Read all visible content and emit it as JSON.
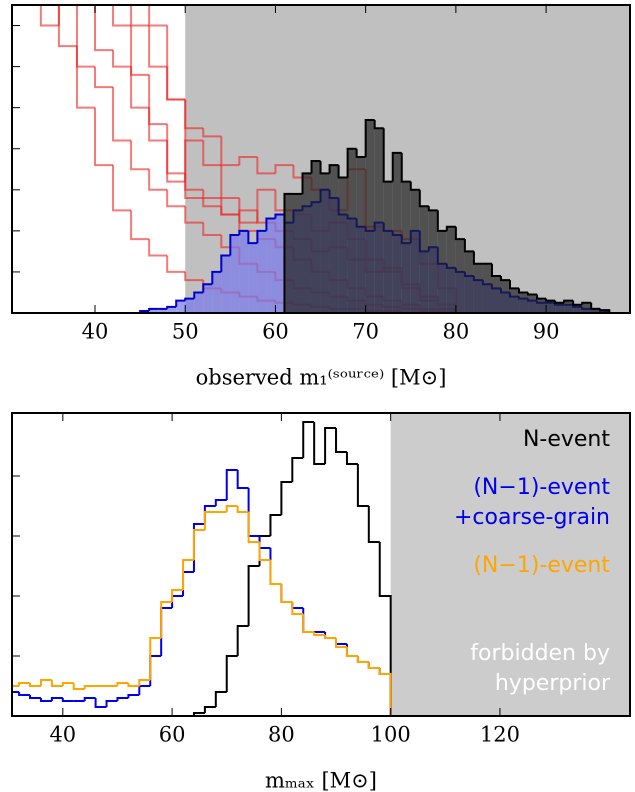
{
  "chart_data": [
    {
      "type": "histogram",
      "xlabel": "observed m₁⁽ˢᵒᵘʳᶜᵉ⁾ [M⊙]",
      "xlim": [
        30.8,
        99.3
      ],
      "xticks": [
        40,
        50,
        60,
        70,
        80,
        90
      ],
      "ylim": [
        0,
        7.5
      ],
      "yticks": [
        1,
        2,
        3,
        4,
        5,
        6,
        7
      ],
      "shade_from": 50,
      "shade_color": "#c0c0c0",
      "series": [
        {
          "color": "#ee2222",
          "bins": [
            30,
            32,
            34,
            36,
            38,
            40,
            42,
            44,
            46,
            48,
            50,
            52,
            54,
            56,
            58,
            60,
            62,
            64,
            66,
            68,
            70,
            72,
            74,
            76,
            78,
            80
          ],
          "values": [
            8,
            8,
            8,
            6.5,
            5,
            3.6,
            2.5,
            1.8,
            1.4,
            1.0,
            0.8,
            0.6,
            0.5,
            0.4,
            0.3,
            0.25,
            0.2,
            0.15,
            0.1,
            0.1,
            0.05,
            0.05,
            0,
            0,
            0
          ]
        },
        {
          "color": "#ee2222",
          "bins": [
            30,
            32,
            34,
            36,
            38,
            40,
            42,
            44,
            46,
            48,
            50,
            52,
            54,
            56,
            58,
            60,
            62,
            64,
            66,
            68,
            70,
            72,
            74,
            76,
            78,
            80
          ],
          "values": [
            8,
            8,
            7,
            7.6,
            6,
            5.5,
            4.2,
            3.5,
            3.0,
            2.6,
            2.2,
            1.9,
            1.6,
            1.2,
            1.0,
            0.8,
            0.6,
            0.5,
            0.4,
            0.3,
            0.2,
            0.15,
            0.1,
            0.05,
            0
          ]
        },
        {
          "color": "#ee2222",
          "bins": [
            30,
            32,
            34,
            36,
            38,
            40,
            42,
            44,
            46,
            48,
            50,
            52,
            54,
            56,
            58,
            60,
            62,
            64,
            66,
            68,
            70,
            72,
            74,
            76,
            78,
            80
          ],
          "values": [
            8,
            8,
            8,
            8,
            7.6,
            6.4,
            6.0,
            5.0,
            4.2,
            3.4,
            2.8,
            2.6,
            2.4,
            2.0,
            1.8,
            1.6,
            1.3,
            1.0,
            0.8,
            0.6,
            0.4,
            0.3,
            0.2,
            0.1,
            0.05
          ]
        },
        {
          "color": "#ee2222",
          "bins": [
            30,
            32,
            34,
            36,
            38,
            40,
            42,
            44,
            46,
            48,
            50,
            52,
            54,
            56,
            58,
            60,
            62,
            64,
            66,
            68,
            70,
            72,
            74,
            76,
            78,
            80
          ],
          "values": [
            8,
            8,
            8,
            8,
            8,
            7.6,
            7.0,
            5.8,
            4.6,
            3.2,
            4.2,
            3.6,
            2.8,
            2.2,
            3.0,
            2.5,
            2.4,
            2.0,
            2.2,
            1.8,
            1.3,
            1.0,
            0.6,
            0.3,
            0.1
          ]
        },
        {
          "color": "#ee2222",
          "bins": [
            30,
            32,
            34,
            36,
            38,
            40,
            42,
            44,
            46,
            48,
            50,
            52,
            54,
            56,
            58,
            60,
            62,
            64,
            66,
            68,
            70,
            72,
            74,
            76,
            78,
            80
          ],
          "values": [
            8,
            8,
            8,
            8,
            8,
            8,
            7.6,
            7.0,
            6.0,
            5.2,
            4.5,
            4.3,
            3.6,
            3.8,
            3.4,
            3.6,
            3.3,
            3.0,
            2.5,
            3.5,
            2.1,
            2.0,
            1.8,
            1.2,
            0.6
          ]
        },
        {
          "color": "#ee2222",
          "bins": [
            30,
            32,
            34,
            36,
            38,
            40,
            42,
            44,
            46,
            48,
            50,
            52,
            54,
            56,
            58,
            60,
            62,
            64,
            66,
            68,
            70,
            72,
            74,
            76,
            78,
            80
          ],
          "values": [
            8,
            8,
            8,
            8,
            8,
            8,
            8,
            7.6,
            7.0,
            5.2,
            3.0,
            2.8,
            2.4,
            2.5,
            2.2,
            2.0,
            1.8,
            1.5,
            1.6,
            1.3,
            1.0,
            1.1,
            0.7,
            0.4,
            0.2
          ]
        },
        {
          "color": "#0000cc",
          "fill": "#7777ee",
          "bins": [
            45,
            46,
            47,
            48,
            49,
            50,
            51,
            52,
            53,
            54,
            55,
            56,
            57,
            58,
            59,
            60,
            61,
            62,
            63,
            64,
            65,
            66,
            67,
            68,
            69,
            70,
            71,
            72,
            73,
            74,
            75,
            76,
            77,
            78,
            79,
            80,
            81,
            82,
            83,
            84,
            85,
            86,
            87,
            88,
            89,
            90,
            91,
            92,
            93,
            94,
            95,
            96,
            97
          ],
          "values": [
            0.05,
            0.1,
            0.1,
            0.15,
            0.3,
            0.35,
            0.5,
            0.7,
            1.0,
            1.4,
            1.9,
            2.0,
            1.7,
            2.0,
            2.3,
            2.4,
            2.2,
            2.5,
            2.6,
            2.7,
            3.0,
            2.8,
            2.4,
            2.3,
            2.1,
            2.0,
            2.2,
            2.0,
            1.9,
            1.7,
            2.0,
            1.5,
            1.6,
            1.2,
            1.1,
            1.0,
            0.9,
            0.8,
            0.7,
            0.6,
            0.5,
            0.4,
            0.35,
            0.3,
            0.25,
            0.25,
            0.2,
            0.2,
            0.15,
            0.1,
            0.1,
            0.05
          ]
        },
        {
          "color": "#000000",
          "fill": "#222222",
          "bins": [
            61,
            62,
            63,
            64,
            65,
            66,
            67,
            68,
            69,
            70,
            71,
            72,
            73,
            74,
            75,
            76,
            77,
            78,
            79,
            80,
            81,
            82,
            83,
            84,
            85,
            86,
            87,
            88,
            89,
            90,
            91,
            92,
            93,
            94,
            95,
            96,
            97
          ],
          "values": [
            2.9,
            2.9,
            3.4,
            3.7,
            3.4,
            3.6,
            3.3,
            4.0,
            3.8,
            4.7,
            4.5,
            3.2,
            3.9,
            3.2,
            3.0,
            2.6,
            2.5,
            2.0,
            2.1,
            1.8,
            1.5,
            1.2,
            1.2,
            0.9,
            0.8,
            0.6,
            0.5,
            0.45,
            0.35,
            0.3,
            0.25,
            0.3,
            0.2,
            0.25,
            0.1,
            0.07
          ]
        }
      ]
    },
    {
      "type": "histogram",
      "xlabel": "mₘₐₓ [M⊙]",
      "xlim": [
        30.7,
        143.8
      ],
      "xticks": [
        40,
        60,
        80,
        100,
        120
      ],
      "ylim": [
        0,
        5.05
      ],
      "yticks": [
        1,
        2,
        3,
        4
      ],
      "shade_from": 100,
      "shade_color": "#cccccc",
      "annotations": [
        "forbidden by",
        "hyperprior"
      ],
      "series": [
        {
          "name": "N-event",
          "color": "#000000",
          "bins": [
            64,
            66,
            68,
            70,
            72,
            74,
            76,
            78,
            80,
            82,
            84,
            86,
            88,
            90,
            92,
            94,
            96,
            98,
            100
          ],
          "values": [
            0.05,
            0.15,
            0.4,
            1.0,
            1.5,
            2.5,
            3.0,
            3.35,
            3.9,
            4.3,
            4.9,
            4.2,
            4.8,
            4.4,
            4.2,
            3.5,
            2.9,
            2.0
          ]
        },
        {
          "name": "(N−1)-event +coarse-grain",
          "color": "#0000ee",
          "bins": [
            30,
            32,
            34,
            36,
            38,
            40,
            42,
            44,
            46,
            48,
            50,
            52,
            54,
            56,
            58,
            60,
            62,
            64,
            66,
            68,
            70,
            72,
            74,
            76,
            78,
            80,
            82,
            84,
            86,
            88,
            90,
            92,
            94,
            96,
            98,
            100
          ],
          "values": [
            0.4,
            0.35,
            0.3,
            0.25,
            0.3,
            0.25,
            0.25,
            0.3,
            0.15,
            0.25,
            0.3,
            0.35,
            0.5,
            1.0,
            1.8,
            2.0,
            2.4,
            3.2,
            3.5,
            3.6,
            4.1,
            3.8,
            3.0,
            2.8,
            2.2,
            1.9,
            1.8,
            1.4,
            1.4,
            1.3,
            1.2,
            1.0,
            0.9,
            0.8,
            0.7
          ]
        },
        {
          "name": "(N−1)-event",
          "color": "#ffa500",
          "bins": [
            30,
            32,
            34,
            36,
            38,
            40,
            42,
            44,
            46,
            48,
            50,
            52,
            54,
            56,
            58,
            60,
            62,
            64,
            66,
            68,
            70,
            72,
            74,
            76,
            78,
            80,
            82,
            84,
            86,
            88,
            90,
            92,
            94,
            96,
            98,
            100
          ],
          "values": [
            0.5,
            0.55,
            0.5,
            0.6,
            0.5,
            0.55,
            0.45,
            0.5,
            0.5,
            0.5,
            0.55,
            0.5,
            0.6,
            1.3,
            1.9,
            2.1,
            2.6,
            3.1,
            3.4,
            3.4,
            3.5,
            3.4,
            2.9,
            2.6,
            2.2,
            1.9,
            1.7,
            1.4,
            1.35,
            1.3,
            1.15,
            1.0,
            0.9,
            0.8,
            0.7
          ]
        }
      ]
    }
  ]
}
